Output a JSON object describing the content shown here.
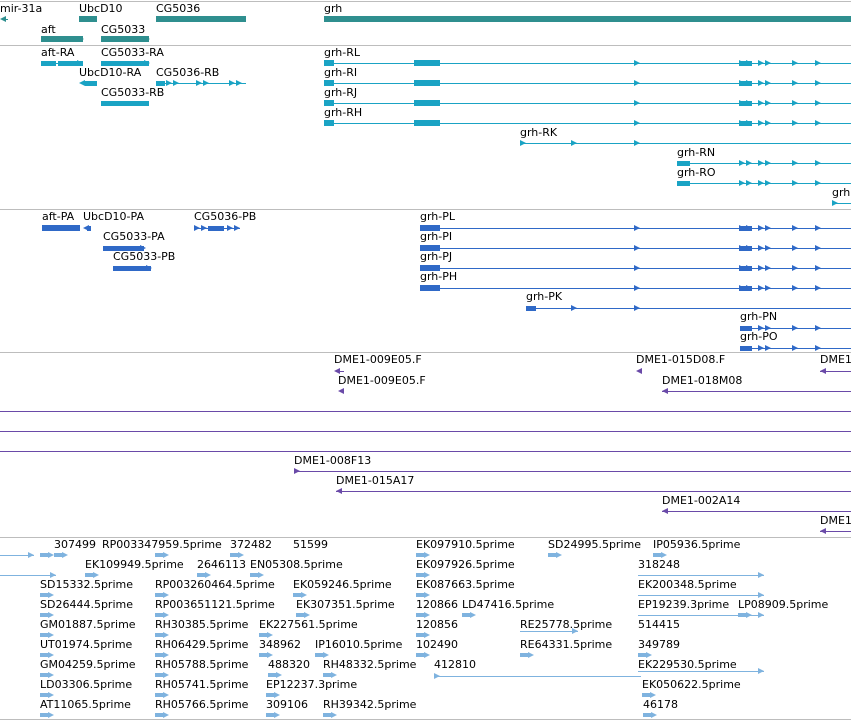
{
  "colors": {
    "gene": "#2f8f8f",
    "transcript": "#1aa3c4",
    "protein": "#2f69c7",
    "bac": "#6a4aa8",
    "est": "#7fb3df",
    "separator": "#bdbdbd"
  },
  "genes": [
    "mir-31a",
    "UbcD10",
    "CG5036",
    "grh",
    "aft",
    "CG5033"
  ],
  "transcripts": [
    "aft-RA",
    "CG5033-RA",
    "UbcD10-RA",
    "CG5036-RB",
    "CG5033-RB",
    "grh-RL",
    "grh-RI",
    "grh-RJ",
    "grh-RH",
    "grh-RK",
    "grh-RN",
    "grh-RO",
    "grh"
  ],
  "proteins": [
    "aft-PA",
    "UbcD10-PA",
    "CG5036-PB",
    "CG5033-PA",
    "CG5033-PB",
    "grh-PL",
    "grh-PI",
    "grh-PJ",
    "grh-PH",
    "grh-PK",
    "grh-PN",
    "grh-PO"
  ],
  "bacs": [
    "DME1-009E05.F",
    "DME1-009E05.F",
    "DME1-015D08.F",
    "DME1-018M08",
    "DME1",
    "DME1-008F13",
    "DME1-015A17",
    "DME1-002A14",
    "DME1"
  ],
  "ests": [
    "307499",
    "RP003347959.5prime",
    "372482",
    "51599",
    "EK097910.5prime",
    "SD24995.5prime",
    "IP05936.5prime",
    "EK109949.5prime",
    "2646113",
    "EN05308.5prime",
    "EK097926.5prime",
    "318248",
    "SD15332.5prime",
    "RP003260464.5prime",
    "EK059246.5prime",
    "EK087663.5prime",
    "EK200348.5prime",
    "SD26444.5prime",
    "RP003651121.5prime",
    "EK307351.5prime",
    "120866",
    "LD47416.5prime",
    "EP19239.3prime",
    "LP08909.5prime",
    "GM01887.5prime",
    "RH30385.5prime",
    "EK227561.5prime",
    "120856",
    "RE25778.5prime",
    "514415",
    "UT01974.5prime",
    "RH06429.5prime",
    "348962",
    "IP16010.5prime",
    "102490",
    "RE64331.5prime",
    "349789",
    "GM04259.5prime",
    "RH05788.5prime",
    "488320",
    "RH48332.5prime",
    "412810",
    "EK229530.5prime",
    "LD03306.5prime",
    "RH05741.5prime",
    "EP12237.3prime",
    "EK050622.5prime",
    "AT11065.5prime",
    "RH05766.5prime",
    "309106",
    "RH39342.5prime",
    "46178"
  ]
}
